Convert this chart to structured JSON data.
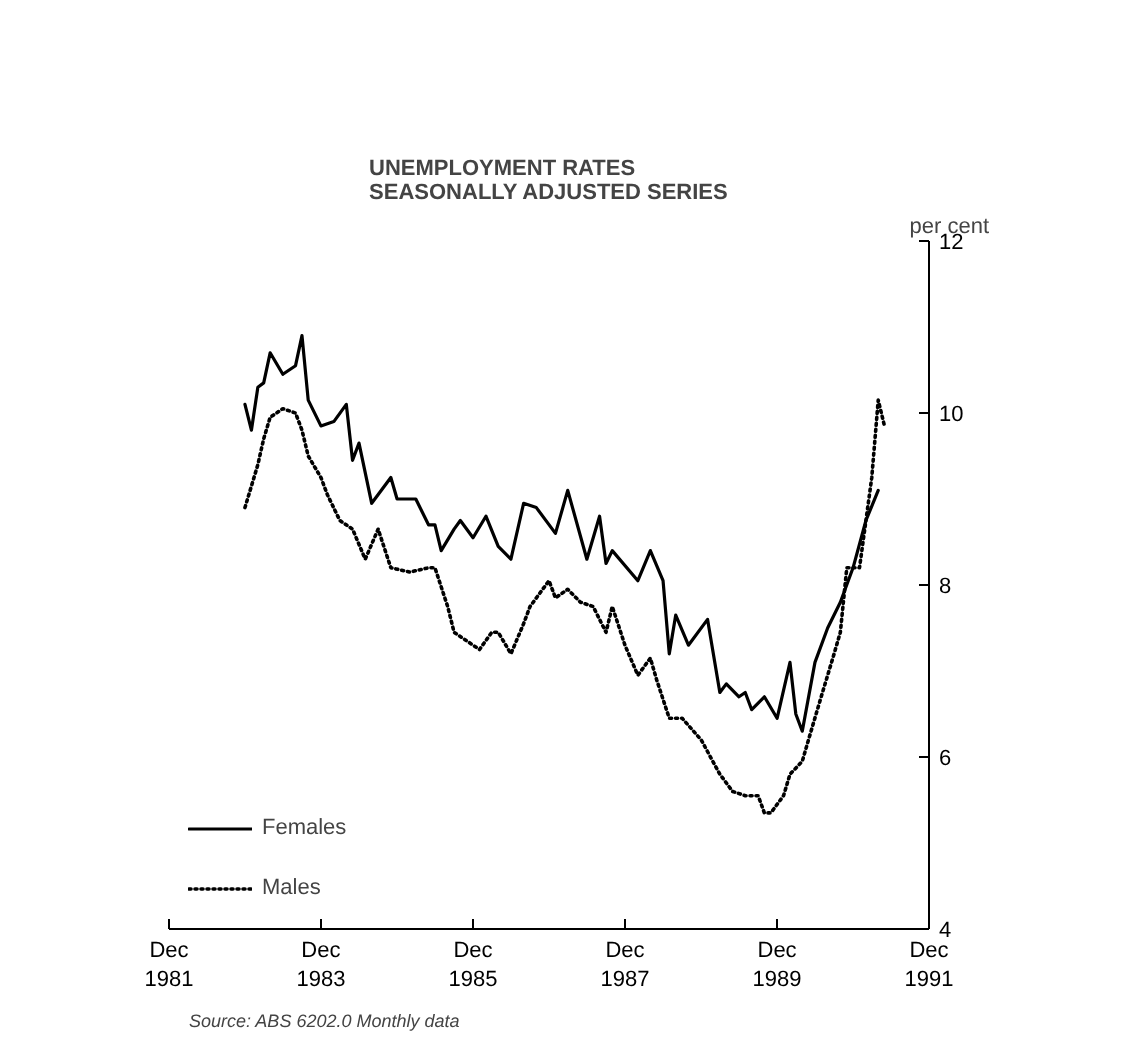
{
  "chart_data": {
    "type": "line",
    "title": "UNEMPLOYMENT RATES\nSEASONALLY ADJUSTED SERIES",
    "ylabel": "per cent",
    "annotations": [
      "Source: ABS 6202.0 Monthly data"
    ],
    "xlim": [
      "1981-12",
      "1991-12"
    ],
    "xticks": [
      {
        "value": "1981-12",
        "label": "Dec\n1981"
      },
      {
        "value": "1983-12",
        "label": "Dec\n1983"
      },
      {
        "value": "1985-12",
        "label": "Dec\n1985"
      },
      {
        "value": "1987-12",
        "label": "Dec\n1987"
      },
      {
        "value": "1989-12",
        "label": "Dec\n1989"
      },
      {
        "value": "1991-12",
        "label": "Dec\n1991"
      }
    ],
    "ylim": [
      4,
      12
    ],
    "yticks": [
      4,
      6,
      8,
      10,
      12
    ],
    "grid": false,
    "legend": "bottom left",
    "marker": "none",
    "series": [
      {
        "name": "Females",
        "color": "#000000",
        "line_style": "solid",
        "x": [
          "1982-12",
          "1983-01",
          "1983-02",
          "1983-03",
          "1983-04",
          "1983-06",
          "1983-08",
          "1983-09",
          "1983-10",
          "1983-12",
          "1984-02",
          "1984-04",
          "1984-05",
          "1984-06",
          "1984-08",
          "1984-11",
          "1984-12",
          "1985-03",
          "1985-05",
          "1985-06",
          "1985-07",
          "1985-09",
          "1985-10",
          "1985-12",
          "1986-02",
          "1986-04",
          "1986-06",
          "1986-08",
          "1986-10",
          "1987-01",
          "1987-03",
          "1987-06",
          "1987-08",
          "1987-09",
          "1987-10",
          "1988-02",
          "1988-04",
          "1988-06",
          "1988-07",
          "1988-08",
          "1988-10",
          "1989-01",
          "1989-03",
          "1989-04",
          "1989-06",
          "1989-07",
          "1989-08",
          "1989-10",
          "1989-12",
          "1990-02",
          "1990-03",
          "1990-04",
          "1990-06",
          "1990-08",
          "1990-10",
          "1990-12",
          "1991-02",
          "1991-04"
        ],
        "values": [
          10.1,
          9.8,
          10.3,
          10.35,
          10.7,
          10.45,
          10.55,
          10.9,
          10.15,
          9.85,
          9.9,
          10.1,
          9.45,
          9.65,
          8.95,
          9.25,
          9.0,
          9.0,
          8.7,
          8.7,
          8.4,
          8.65,
          8.75,
          8.55,
          8.8,
          8.45,
          8.3,
          8.95,
          8.9,
          8.6,
          9.1,
          8.3,
          8.8,
          8.25,
          8.4,
          8.05,
          8.4,
          8.05,
          7.2,
          7.65,
          7.3,
          7.6,
          6.75,
          6.85,
          6.7,
          6.75,
          6.55,
          6.7,
          6.45,
          7.1,
          6.5,
          6.3,
          7.1,
          7.5,
          7.8,
          8.2,
          8.75,
          9.1
        ]
      },
      {
        "name": "Males",
        "color": "#000000",
        "line_style": "dotted",
        "x": [
          "1982-12",
          "1983-02",
          "1983-03",
          "1983-04",
          "1983-06",
          "1983-08",
          "1983-09",
          "1983-10",
          "1983-12",
          "1984-01",
          "1984-03",
          "1984-05",
          "1984-07",
          "1984-09",
          "1984-11",
          "1985-02",
          "1985-05",
          "1985-06",
          "1985-08",
          "1985-09",
          "1986-01",
          "1986-03",
          "1986-04",
          "1986-06",
          "1986-08",
          "1986-09",
          "1986-12",
          "1987-01",
          "1987-03",
          "1987-05",
          "1987-07",
          "1987-09",
          "1987-10",
          "1987-12",
          "1988-02",
          "1988-04",
          "1988-05",
          "1988-07",
          "1988-09",
          "1988-12",
          "1989-03",
          "1989-05",
          "1989-07",
          "1989-09",
          "1989-10",
          "1989-11",
          "1990-01",
          "1990-02",
          "1990-04",
          "1990-05",
          "1990-07",
          "1990-09",
          "1990-10",
          "1990-11",
          "1991-01",
          "1991-02",
          "1991-03",
          "1991-04",
          "1991-05"
        ],
        "values": [
          8.9,
          9.4,
          9.7,
          9.95,
          10.05,
          10.0,
          9.8,
          9.5,
          9.25,
          9.05,
          8.75,
          8.65,
          8.3,
          8.65,
          8.2,
          8.15,
          8.2,
          8.2,
          7.75,
          7.45,
          7.25,
          7.45,
          7.45,
          7.2,
          7.55,
          7.75,
          8.05,
          7.85,
          7.95,
          7.8,
          7.75,
          7.45,
          7.75,
          7.3,
          6.95,
          7.15,
          6.9,
          6.45,
          6.45,
          6.2,
          5.8,
          5.6,
          5.55,
          5.55,
          5.35,
          5.35,
          5.55,
          5.8,
          5.95,
          6.2,
          6.7,
          7.2,
          7.45,
          8.2,
          8.2,
          8.75,
          9.25,
          10.15,
          9.85
        ]
      }
    ]
  }
}
